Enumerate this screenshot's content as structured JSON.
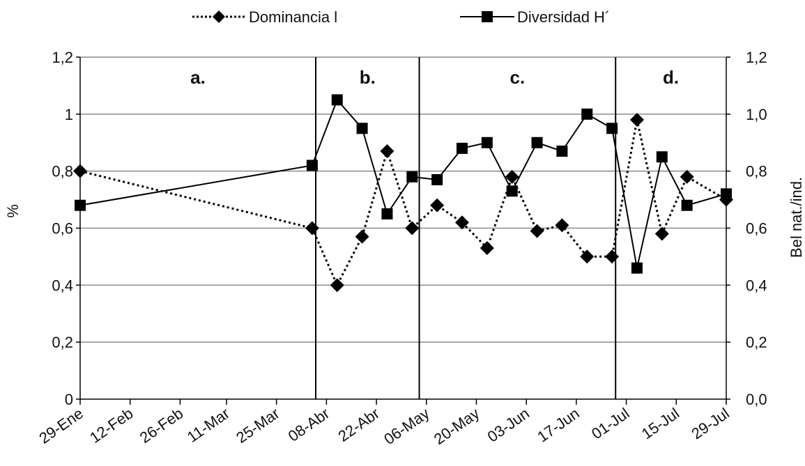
{
  "chart_data": {
    "type": "line",
    "title": "",
    "ylabel_left": "%",
    "ylabel_right": "Bel nat./ind.",
    "yticks_left": [
      "0",
      "0,2",
      "0,4",
      "0,6",
      "0,8",
      "1",
      "1,2"
    ],
    "yticks_right": [
      "0,0",
      "0,2",
      "0,4",
      "0,6",
      "0,8",
      "1,0",
      "1,2"
    ],
    "ylim": [
      0,
      1.2
    ],
    "xlim": [
      "29-Ene",
      "29-Jul"
    ],
    "xticks": [
      {
        "date": "29-Ene",
        "label": "29-Ene"
      },
      {
        "date": "12-Feb",
        "label": "12-Feb"
      },
      {
        "date": "26-Feb",
        "label": "26-Feb"
      },
      {
        "date": "11-Mar",
        "label": "11-Mar"
      },
      {
        "date": "25-Mar",
        "label": "25-Mar"
      },
      {
        "date": "08-Abr",
        "label": "08-Abr"
      },
      {
        "date": "22-Abr",
        "label": "22-Abr"
      },
      {
        "date": "06-May",
        "label": "06-May"
      },
      {
        "date": "20-May",
        "label": "20-May"
      },
      {
        "date": "03-Jun",
        "label": "03-Jun"
      },
      {
        "date": "17-Jun",
        "label": "17-Jun"
      },
      {
        "date": "01-Jul",
        "label": "01-Jul"
      },
      {
        "date": "15-Jul",
        "label": "15-Jul"
      },
      {
        "date": "29-Jul",
        "label": "29-Jul"
      }
    ],
    "grid": true,
    "legend_position": "top",
    "phases": [
      {
        "label": "a.",
        "start": "29-Ene",
        "end": "05-Abr"
      },
      {
        "label": "b.",
        "start": "05-Abr",
        "end": "04-May"
      },
      {
        "label": "c.",
        "start": "04-May",
        "end": "28-Jun"
      },
      {
        "label": "d.",
        "start": "28-Jun",
        "end": "29-Jul"
      }
    ],
    "series": [
      {
        "name": "Dominancia l",
        "style": "dotted",
        "marker": "diamond",
        "axis": "left",
        "points": [
          {
            "x": "29-Ene",
            "y": 0.8
          },
          {
            "x": "04-Abr",
            "y": 0.6
          },
          {
            "x": "11-Abr",
            "y": 0.4
          },
          {
            "x": "18-Abr",
            "y": 0.57
          },
          {
            "x": "25-Abr",
            "y": 0.87
          },
          {
            "x": "02-May",
            "y": 0.6
          },
          {
            "x": "09-May",
            "y": 0.68
          },
          {
            "x": "16-May",
            "y": 0.62
          },
          {
            "x": "23-May",
            "y": 0.53
          },
          {
            "x": "30-May",
            "y": 0.78
          },
          {
            "x": "06-Jun",
            "y": 0.59
          },
          {
            "x": "13-Jun",
            "y": 0.61
          },
          {
            "x": "20-Jun",
            "y": 0.5
          },
          {
            "x": "27-Jun",
            "y": 0.5
          },
          {
            "x": "04-Jul",
            "y": 0.98
          },
          {
            "x": "11-Jul",
            "y": 0.58
          },
          {
            "x": "18-Jul",
            "y": 0.78
          },
          {
            "x": "29-Jul",
            "y": 0.7
          }
        ]
      },
      {
        "name": "Diversidad H´",
        "style": "solid",
        "marker": "square",
        "axis": "right",
        "points": [
          {
            "x": "29-Ene",
            "y": 0.68
          },
          {
            "x": "04-Abr",
            "y": 0.82
          },
          {
            "x": "11-Abr",
            "y": 1.05
          },
          {
            "x": "18-Abr",
            "y": 0.95
          },
          {
            "x": "25-Abr",
            "y": 0.65
          },
          {
            "x": "02-May",
            "y": 0.78
          },
          {
            "x": "09-May",
            "y": 0.77
          },
          {
            "x": "16-May",
            "y": 0.88
          },
          {
            "x": "23-May",
            "y": 0.9
          },
          {
            "x": "30-May",
            "y": 0.73
          },
          {
            "x": "06-Jun",
            "y": 0.9
          },
          {
            "x": "13-Jun",
            "y": 0.87
          },
          {
            "x": "20-Jun",
            "y": 1.0
          },
          {
            "x": "27-Jun",
            "y": 0.95
          },
          {
            "x": "04-Jul",
            "y": 0.46
          },
          {
            "x": "11-Jul",
            "y": 0.85
          },
          {
            "x": "18-Jul",
            "y": 0.68
          },
          {
            "x": "29-Jul",
            "y": 0.72
          }
        ]
      }
    ]
  }
}
